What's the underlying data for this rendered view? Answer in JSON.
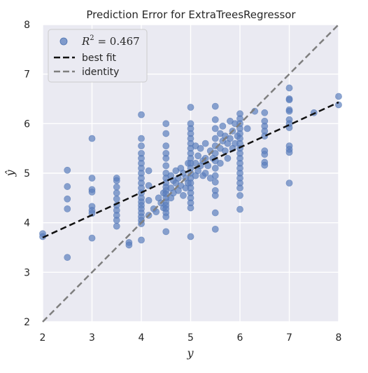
{
  "chart_data": {
    "type": "scatter",
    "title": "Prediction Error for ExtraTreesRegressor",
    "xlabel": "y",
    "ylabel": "ŷ",
    "xlim": [
      2,
      8
    ],
    "ylim": [
      2,
      8
    ],
    "xticks": [
      "2",
      "3",
      "4",
      "5",
      "6",
      "7",
      "8"
    ],
    "yticks": [
      "2",
      "3",
      "4",
      "5",
      "6",
      "7",
      "8"
    ],
    "grid": true,
    "legend_position": "top-left",
    "colors": {
      "points": "#5b7fbd",
      "best_fit": "#111111",
      "identity": "#7f7f7f",
      "background": "#eaeaf2"
    },
    "legend": {
      "r2_label": "R² = 0.467",
      "r2_symbol": "R",
      "r2_power": "2",
      "r2_value": " = 0.467",
      "best_fit": "best fit",
      "identity": "identity"
    },
    "best_fit_line": {
      "x": [
        2,
        8
      ],
      "y": [
        3.7,
        6.43
      ]
    },
    "identity_line": {
      "x": [
        2,
        8
      ],
      "y": [
        2,
        8
      ]
    },
    "points": [
      [
        2.0,
        3.78
      ],
      [
        2.0,
        3.72
      ],
      [
        2.5,
        5.06
      ],
      [
        2.5,
        4.73
      ],
      [
        2.5,
        4.48
      ],
      [
        2.5,
        4.28
      ],
      [
        2.5,
        3.3
      ],
      [
        3.0,
        5.7
      ],
      [
        3.0,
        4.9
      ],
      [
        3.0,
        4.67
      ],
      [
        3.0,
        4.62
      ],
      [
        3.0,
        4.33
      ],
      [
        3.0,
        4.25
      ],
      [
        3.0,
        4.19
      ],
      [
        3.0,
        3.69
      ],
      [
        3.5,
        4.9
      ],
      [
        3.5,
        4.85
      ],
      [
        3.5,
        4.72
      ],
      [
        3.5,
        4.6
      ],
      [
        3.5,
        4.48
      ],
      [
        3.5,
        4.35
      ],
      [
        3.5,
        4.25
      ],
      [
        3.5,
        4.15
      ],
      [
        3.5,
        4.05
      ],
      [
        3.5,
        3.93
      ],
      [
        3.75,
        3.6
      ],
      [
        3.75,
        3.55
      ],
      [
        4.0,
        6.18
      ],
      [
        4.0,
        5.7
      ],
      [
        4.0,
        5.55
      ],
      [
        4.0,
        5.4
      ],
      [
        4.0,
        5.3
      ],
      [
        4.0,
        5.2
      ],
      [
        4.0,
        5.1
      ],
      [
        4.0,
        5.0
      ],
      [
        4.0,
        4.9
      ],
      [
        4.0,
        4.8
      ],
      [
        4.0,
        4.7
      ],
      [
        4.0,
        4.6
      ],
      [
        4.0,
        4.5
      ],
      [
        4.0,
        4.42
      ],
      [
        4.0,
        4.35
      ],
      [
        4.0,
        4.28
      ],
      [
        4.0,
        4.2
      ],
      [
        4.0,
        4.12
      ],
      [
        4.0,
        4.05
      ],
      [
        4.0,
        3.98
      ],
      [
        4.0,
        3.65
      ],
      [
        4.15,
        5.05
      ],
      [
        4.15,
        4.75
      ],
      [
        4.15,
        4.45
      ],
      [
        4.15,
        4.15
      ],
      [
        4.25,
        4.28
      ],
      [
        4.3,
        4.22
      ],
      [
        4.35,
        4.5
      ],
      [
        4.4,
        4.4
      ],
      [
        4.45,
        4.6
      ],
      [
        4.45,
        4.3
      ],
      [
        4.5,
        6.0
      ],
      [
        4.5,
        5.8
      ],
      [
        4.5,
        5.55
      ],
      [
        4.5,
        5.4
      ],
      [
        4.5,
        5.3
      ],
      [
        4.5,
        5.15
      ],
      [
        4.5,
        5.0
      ],
      [
        4.5,
        4.9
      ],
      [
        4.5,
        4.8
      ],
      [
        4.5,
        4.72
      ],
      [
        4.5,
        4.65
      ],
      [
        4.5,
        4.58
      ],
      [
        4.5,
        4.5
      ],
      [
        4.5,
        4.42
      ],
      [
        4.5,
        4.35
      ],
      [
        4.5,
        4.28
      ],
      [
        4.5,
        4.2
      ],
      [
        4.5,
        4.12
      ],
      [
        4.5,
        3.82
      ],
      [
        4.6,
        4.95
      ],
      [
        4.6,
        4.7
      ],
      [
        4.6,
        4.5
      ],
      [
        4.65,
        4.85
      ],
      [
        4.65,
        4.6
      ],
      [
        4.7,
        5.05
      ],
      [
        4.7,
        4.8
      ],
      [
        4.75,
        4.9
      ],
      [
        4.75,
        4.65
      ],
      [
        4.8,
        5.1
      ],
      [
        4.8,
        4.75
      ],
      [
        4.85,
        5.0
      ],
      [
        4.85,
        4.55
      ],
      [
        4.9,
        4.9
      ],
      [
        4.9,
        4.7
      ],
      [
        4.95,
        5.2
      ],
      [
        4.95,
        4.8
      ],
      [
        5.0,
        6.33
      ],
      [
        5.0,
        6.0
      ],
      [
        5.0,
        5.9
      ],
      [
        5.0,
        5.8
      ],
      [
        5.0,
        5.7
      ],
      [
        5.0,
        5.6
      ],
      [
        5.0,
        5.5
      ],
      [
        5.0,
        5.4
      ],
      [
        5.0,
        5.3
      ],
      [
        5.0,
        5.2
      ],
      [
        5.0,
        5.1
      ],
      [
        5.0,
        5.0
      ],
      [
        5.0,
        4.9
      ],
      [
        5.0,
        4.8
      ],
      [
        5.0,
        4.7
      ],
      [
        5.0,
        4.6
      ],
      [
        5.0,
        4.5
      ],
      [
        5.0,
        4.4
      ],
      [
        5.0,
        4.3
      ],
      [
        5.0,
        3.72
      ],
      [
        5.1,
        5.55
      ],
      [
        5.1,
        5.2
      ],
      [
        5.1,
        4.95
      ],
      [
        5.15,
        5.35
      ],
      [
        5.15,
        5.05
      ],
      [
        5.2,
        5.5
      ],
      [
        5.2,
        5.15
      ],
      [
        5.25,
        5.25
      ],
      [
        5.25,
        4.95
      ],
      [
        5.3,
        5.6
      ],
      [
        5.3,
        5.3
      ],
      [
        5.3,
        5.0
      ],
      [
        5.35,
        5.15
      ],
      [
        5.4,
        5.45
      ],
      [
        5.4,
        4.9
      ],
      [
        5.45,
        5.3
      ],
      [
        5.5,
        6.35
      ],
      [
        5.5,
        6.08
      ],
      [
        5.5,
        5.9
      ],
      [
        5.5,
        5.7
      ],
      [
        5.5,
        5.55
      ],
      [
        5.5,
        5.4
      ],
      [
        5.5,
        5.25
      ],
      [
        5.5,
        5.1
      ],
      [
        5.5,
        4.95
      ],
      [
        5.5,
        4.82
      ],
      [
        5.5,
        4.65
      ],
      [
        5.5,
        4.55
      ],
      [
        5.5,
        4.2
      ],
      [
        5.5,
        3.87
      ],
      [
        5.6,
        5.8
      ],
      [
        5.6,
        5.5
      ],
      [
        5.6,
        5.2
      ],
      [
        5.65,
        5.95
      ],
      [
        5.65,
        5.65
      ],
      [
        5.7,
        5.75
      ],
      [
        5.7,
        5.45
      ],
      [
        5.75,
        5.6
      ],
      [
        5.75,
        5.3
      ],
      [
        5.8,
        6.05
      ],
      [
        5.8,
        5.7
      ],
      [
        5.85,
        5.85
      ],
      [
        5.85,
        5.5
      ],
      [
        5.9,
        6.0
      ],
      [
        5.9,
        5.6
      ],
      [
        5.95,
        5.75
      ],
      [
        6.0,
        6.2
      ],
      [
        6.0,
        6.1
      ],
      [
        6.0,
        6.0
      ],
      [
        6.0,
        5.9
      ],
      [
        6.0,
        5.8
      ],
      [
        6.0,
        5.7
      ],
      [
        6.0,
        5.6
      ],
      [
        6.0,
        5.5
      ],
      [
        6.0,
        5.4
      ],
      [
        6.0,
        5.3
      ],
      [
        6.0,
        5.2
      ],
      [
        6.0,
        5.1
      ],
      [
        6.0,
        5.0
      ],
      [
        6.0,
        4.9
      ],
      [
        6.0,
        4.8
      ],
      [
        6.0,
        4.7
      ],
      [
        6.0,
        4.55
      ],
      [
        6.0,
        4.27
      ],
      [
        6.15,
        5.9
      ],
      [
        6.3,
        6.25
      ],
      [
        6.5,
        6.22
      ],
      [
        6.5,
        6.05
      ],
      [
        6.5,
        5.95
      ],
      [
        6.5,
        5.85
      ],
      [
        6.5,
        5.75
      ],
      [
        6.5,
        5.45
      ],
      [
        6.5,
        5.38
      ],
      [
        6.5,
        5.22
      ],
      [
        6.5,
        5.16
      ],
      [
        7.0,
        6.72
      ],
      [
        7.0,
        6.5
      ],
      [
        7.0,
        6.48
      ],
      [
        7.0,
        6.28
      ],
      [
        7.0,
        6.25
      ],
      [
        7.0,
        6.08
      ],
      [
        7.0,
        6.0
      ],
      [
        7.0,
        5.92
      ],
      [
        7.0,
        5.55
      ],
      [
        7.0,
        5.48
      ],
      [
        7.0,
        5.42
      ],
      [
        7.0,
        4.8
      ],
      [
        7.5,
        6.22
      ],
      [
        8.0,
        6.55
      ],
      [
        8.0,
        6.38
      ]
    ]
  }
}
